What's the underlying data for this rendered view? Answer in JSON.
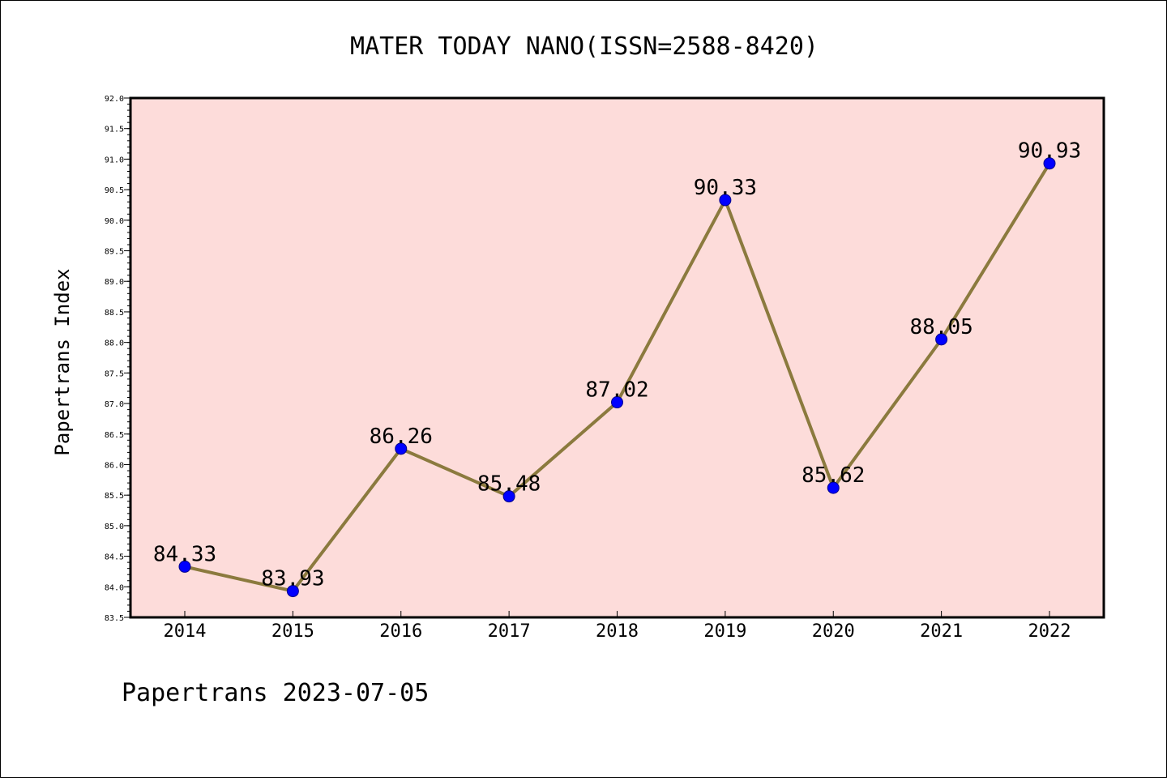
{
  "chart_data": {
    "type": "line",
    "title": "MATER TODAY NANO(ISSN=2588-8420)",
    "xlabel": "",
    "ylabel": "Papertrans Index",
    "categories": [
      "2014",
      "2015",
      "2016",
      "2017",
      "2018",
      "2019",
      "2020",
      "2021",
      "2022"
    ],
    "series": [
      {
        "values": [
          84.33,
          83.93,
          86.26,
          85.48,
          87.02,
          90.33,
          85.62,
          88.05,
          90.93
        ]
      }
    ],
    "data_labels": [
      "84.33",
      "83.93",
      "86.26",
      "85.48",
      "87.02",
      "90.33",
      "85.62",
      "88.05",
      "90.93"
    ],
    "ylim": [
      83.5,
      92.0
    ],
    "yticks": [
      "83.5",
      "84.0",
      "84.5",
      "85.0",
      "85.5",
      "86.0",
      "86.5",
      "87.0",
      "87.5",
      "88.0",
      "88.5",
      "89.0",
      "89.5",
      "90.0",
      "90.5",
      "91.0",
      "91.5",
      "92.0"
    ],
    "grid": false,
    "legend": "none",
    "colors": {
      "plot_background": "#fddcda",
      "line": "#8b7a3e",
      "marker": "#0000ff"
    }
  },
  "footer": "Papertrans 2023-07-05"
}
